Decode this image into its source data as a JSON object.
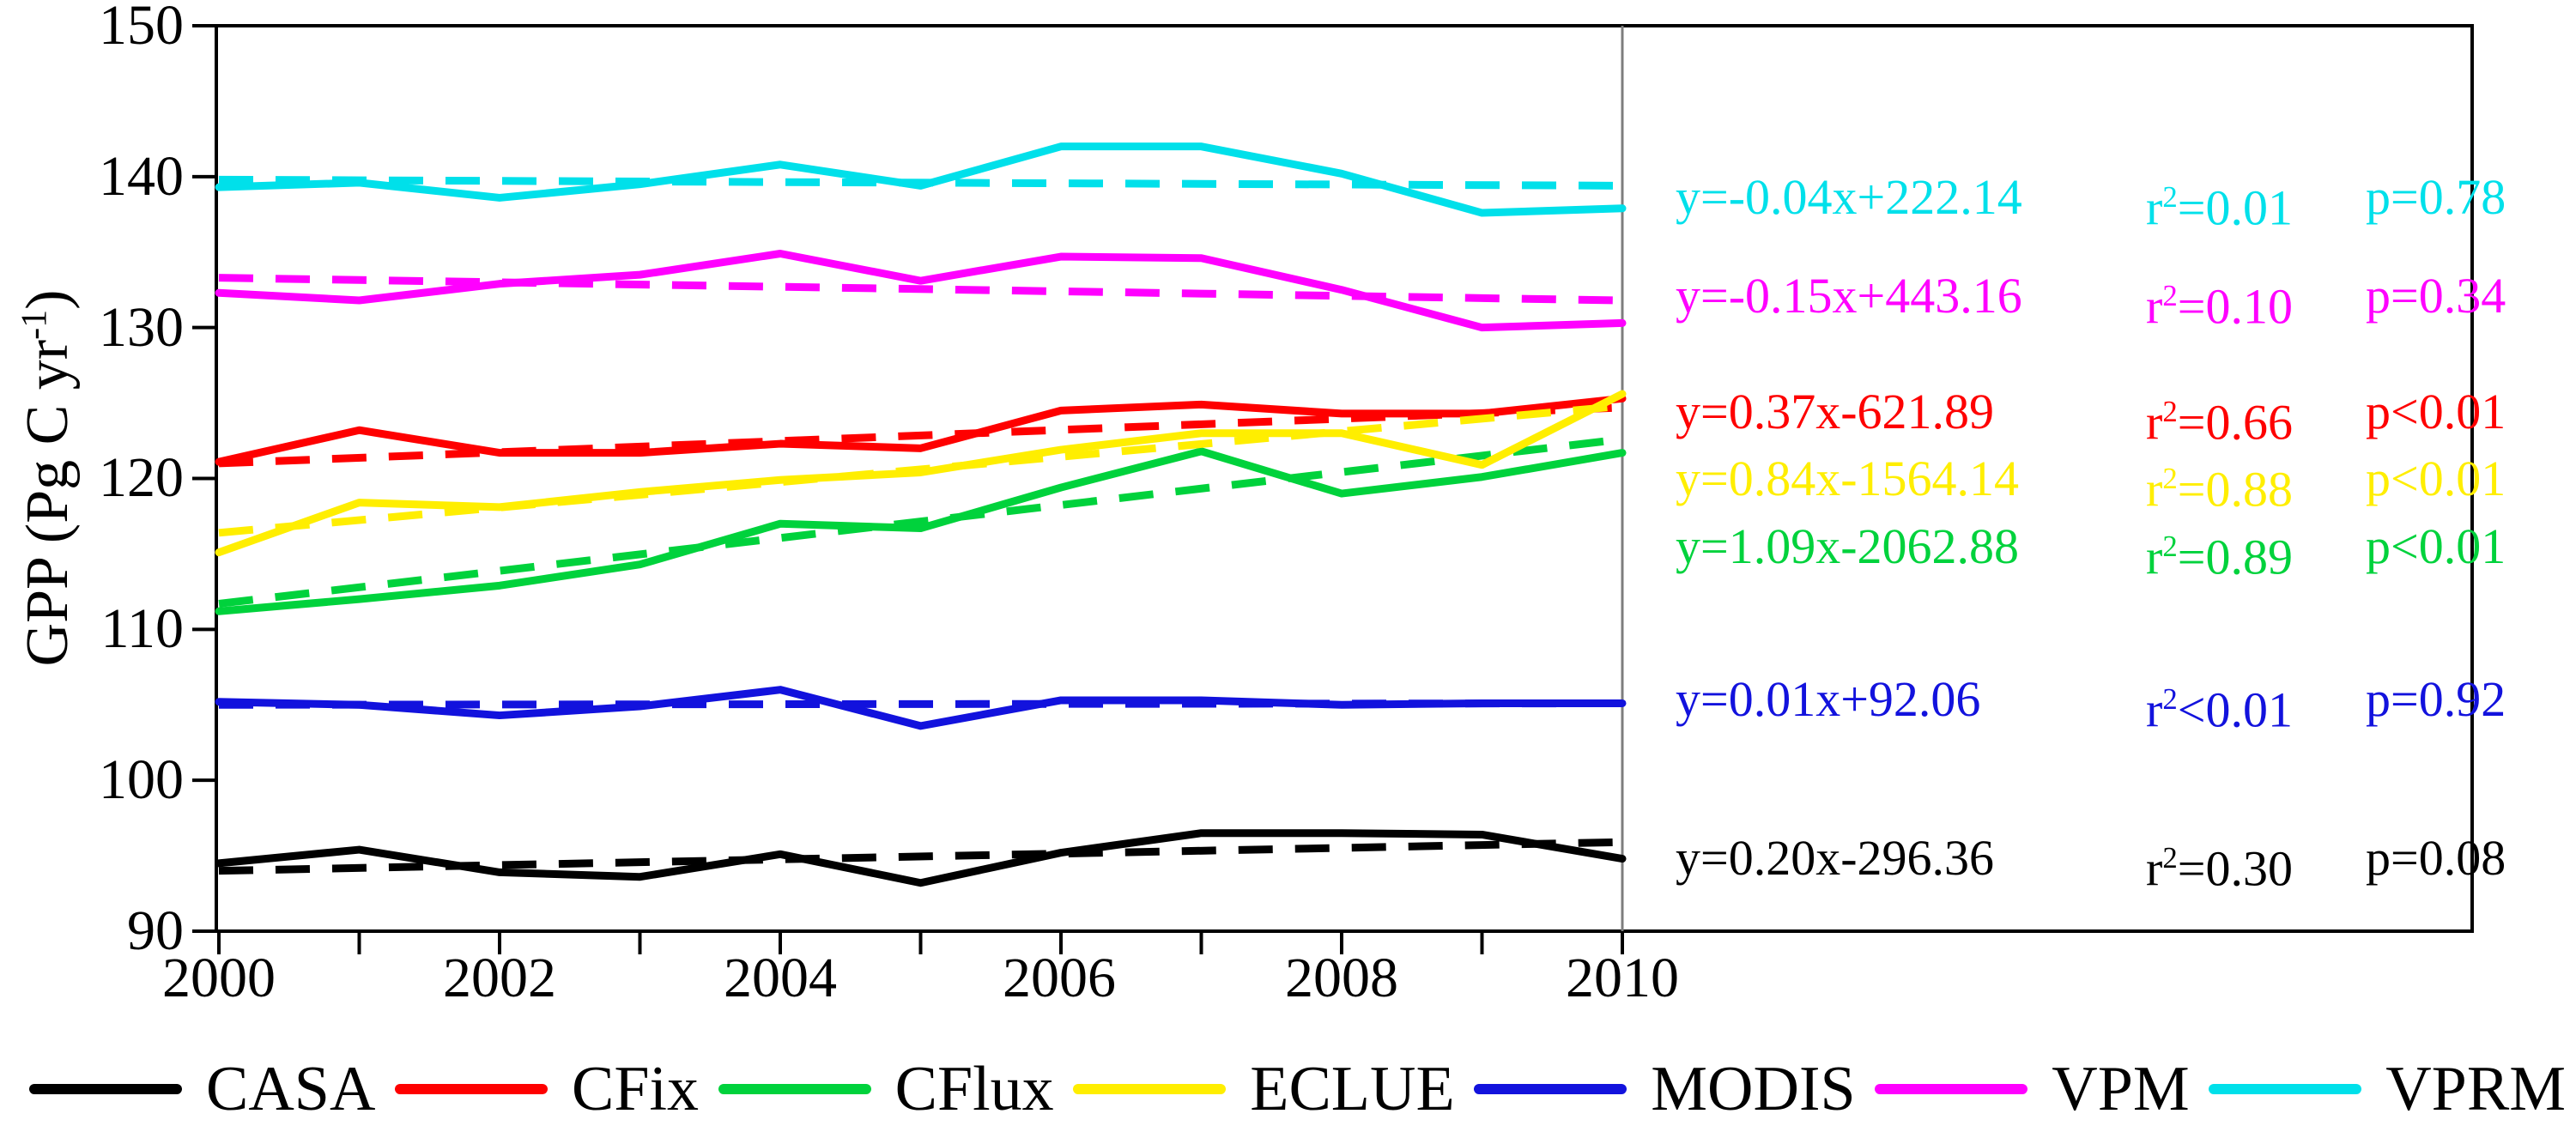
{
  "figure": {
    "background": "#ffffff"
  },
  "labels": {
    "r_base": "r",
    "r_sup": "2"
  },
  "axes": {
    "y_title_pre": "GPP (Pg C yr",
    "y_title_sup": "-1",
    "y_title_post": ")",
    "y_ticks": [
      "150",
      "140",
      "130",
      "120",
      "110",
      "100",
      "90"
    ],
    "x_ticks": [
      "2000",
      "2002",
      "2004",
      "2006",
      "2008",
      "2010"
    ],
    "axis_color": "#000000",
    "divider_color": "#7d7d7d"
  },
  "chart_data": {
    "type": "line",
    "title": "",
    "xlabel": "",
    "ylabel": "GPP (Pg C yr-1)",
    "xlim": [
      2000,
      2010
    ],
    "ylim": [
      90,
      150
    ],
    "grid": false,
    "legend_position": "bottom",
    "x": [
      2000,
      2001,
      2002,
      2003,
      2004,
      2005,
      2006,
      2007,
      2008,
      2009,
      2010
    ],
    "series": [
      {
        "name": "CASA",
        "color": "#000000",
        "values": [
          94.5,
          95.4,
          93.9,
          93.6,
          95.1,
          93.2,
          95.2,
          96.5,
          96.5,
          96.4,
          94.8
        ],
        "trend": [
          94.0,
          95.9
        ],
        "regression": {
          "eq": "y=0.20x-296.36",
          "r2": "=0.30",
          "p": "p=0.08"
        }
      },
      {
        "name": "CFix",
        "color": "#fe0000",
        "values": [
          121.1,
          123.2,
          121.7,
          121.7,
          122.3,
          122.0,
          124.5,
          124.9,
          124.3,
          124.3,
          125.3
        ],
        "trend": [
          121.0,
          124.7
        ],
        "regression": {
          "eq": "y=0.37x-621.89",
          "r2": "=0.66",
          "p": "p<0.01"
        }
      },
      {
        "name": "CFlux",
        "color": "#00d23c",
        "values": [
          111.2,
          112.0,
          112.9,
          114.3,
          117.0,
          116.7,
          119.4,
          121.8,
          119.0,
          120.1,
          121.7
        ],
        "trend": [
          111.7,
          122.6
        ],
        "regression": {
          "eq": "y=1.09x-2062.88",
          "r2": "=0.89",
          "p": "p<0.01"
        }
      },
      {
        "name": "ECLUE",
        "color": "#ffee00",
        "values": [
          115.1,
          118.4,
          118.1,
          119.1,
          119.9,
          120.4,
          121.9,
          123.0,
          123.0,
          120.9,
          125.6
        ],
        "trend": [
          116.4,
          124.8
        ],
        "regression": {
          "eq": "y=0.84x-1564.14",
          "r2": "=0.88",
          "p": "p<0.01"
        }
      },
      {
        "name": "MODIS",
        "color": "#1212dd",
        "values": [
          105.2,
          105.0,
          104.3,
          104.9,
          106.0,
          103.6,
          105.3,
          105.3,
          105.0,
          105.1,
          105.1
        ],
        "trend": [
          105.0,
          105.1
        ],
        "regression": {
          "eq": "y=0.01x+92.06",
          "r2": "<0.01",
          "p": "p=0.92"
        }
      },
      {
        "name": "VPM",
        "color": "#ff00ff",
        "values": [
          132.3,
          131.8,
          132.9,
          133.5,
          134.9,
          133.1,
          134.7,
          134.6,
          132.5,
          130.0,
          130.3
        ],
        "trend": [
          133.3,
          131.8
        ],
        "regression": {
          "eq": "y=-0.15x+443.16",
          "r2": "=0.10",
          "p": "p=0.34"
        }
      },
      {
        "name": "VPRM",
        "color": "#00e0ea",
        "values": [
          139.3,
          139.6,
          138.6,
          139.5,
          140.8,
          139.4,
          142.0,
          142.0,
          140.2,
          137.6,
          137.9
        ],
        "trend": [
          139.8,
          139.4
        ],
        "regression": {
          "eq": "y=-0.04x+222.14",
          "r2": "=0.01",
          "p": "p=0.78"
        }
      }
    ]
  }
}
